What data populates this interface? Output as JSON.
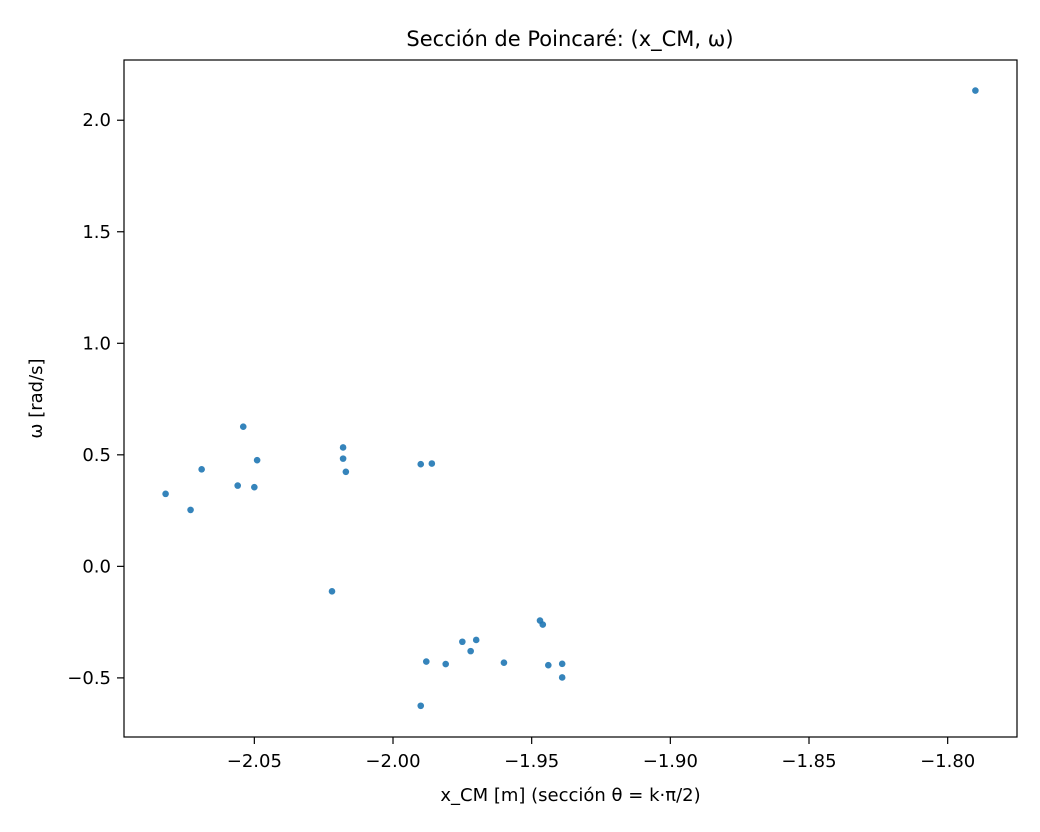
{
  "chart_data": {
    "type": "scatter",
    "title": "Sección de Poincaré: (x_CM, ω)",
    "xlabel": "x_CM [m]  (sección θ = k·π/2)",
    "ylabel": "ω [rad/s]",
    "xlim": [
      -2.097,
      -1.775
    ],
    "ylim": [
      -0.765,
      2.27
    ],
    "xticks": [
      -2.05,
      -2.0,
      -1.95,
      -1.9,
      -1.85,
      -1.8
    ],
    "xtick_labels": [
      "−2.05",
      "−2.00",
      "−1.95",
      "−1.90",
      "−1.85",
      "−1.80"
    ],
    "yticks": [
      -0.5,
      0.0,
      0.5,
      1.0,
      1.5,
      2.0
    ],
    "ytick_labels": [
      "−0.5",
      "0.0",
      "0.5",
      "1.0",
      "1.5",
      "2.0"
    ],
    "grid": false,
    "marker_color": "#1f77b4",
    "points": [
      {
        "x": -2.082,
        "y": 0.325
      },
      {
        "x": -2.073,
        "y": 0.253
      },
      {
        "x": -2.069,
        "y": 0.435
      },
      {
        "x": -2.056,
        "y": 0.362
      },
      {
        "x": -2.054,
        "y": 0.626
      },
      {
        "x": -2.05,
        "y": 0.355
      },
      {
        "x": -2.049,
        "y": 0.476
      },
      {
        "x": -2.022,
        "y": -0.112
      },
      {
        "x": -2.018,
        "y": 0.533
      },
      {
        "x": -2.018,
        "y": 0.483
      },
      {
        "x": -2.017,
        "y": 0.424
      },
      {
        "x": -1.99,
        "y": 0.458
      },
      {
        "x": -1.986,
        "y": 0.461
      },
      {
        "x": -1.99,
        "y": -0.625
      },
      {
        "x": -1.988,
        "y": -0.427
      },
      {
        "x": -1.981,
        "y": -0.438
      },
      {
        "x": -1.975,
        "y": -0.338
      },
      {
        "x": -1.972,
        "y": -0.38
      },
      {
        "x": -1.97,
        "y": -0.33
      },
      {
        "x": -1.96,
        "y": -0.432
      },
      {
        "x": -1.947,
        "y": -0.243
      },
      {
        "x": -1.946,
        "y": -0.261
      },
      {
        "x": -1.944,
        "y": -0.443
      },
      {
        "x": -1.939,
        "y": -0.437
      },
      {
        "x": -1.939,
        "y": -0.498
      },
      {
        "x": -1.79,
        "y": 2.133
      }
    ]
  }
}
